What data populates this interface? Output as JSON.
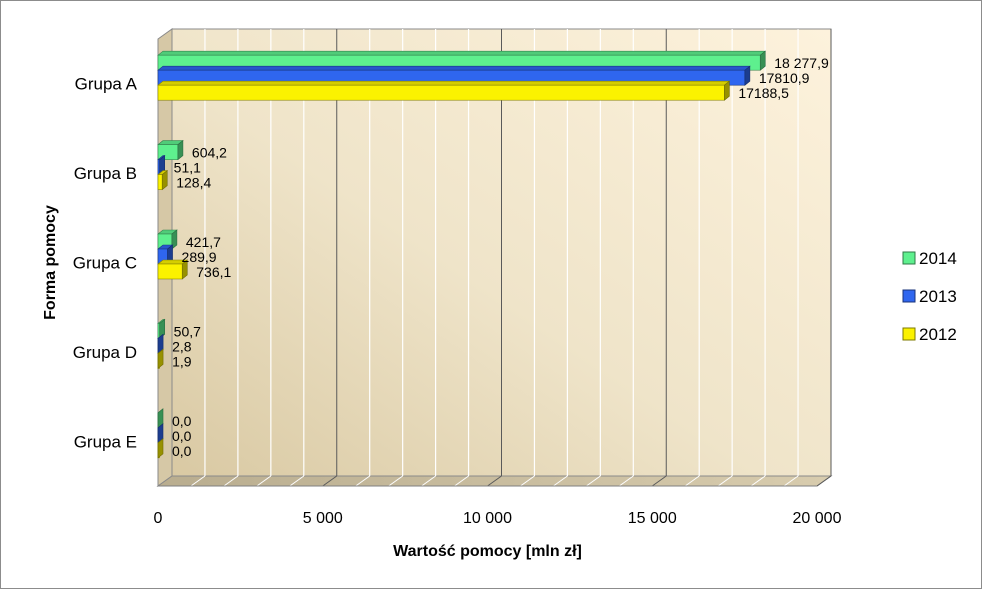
{
  "chart_data": {
    "type": "bar",
    "orientation": "horizontal",
    "categories": [
      "Grupa A",
      "Grupa B",
      "Grupa C",
      "Grupa D",
      "Grupa E"
    ],
    "series": [
      {
        "name": "2014",
        "color": "#5ef08e",
        "values": [
          18277.9,
          604.2,
          421.7,
          50.7,
          0.0
        ],
        "labels": [
          "18 277,9",
          "604,2",
          "421,7",
          "50,7",
          "0,0"
        ]
      },
      {
        "name": "2013",
        "color": "#2f66ef",
        "values": [
          17810.9,
          51.1,
          289.9,
          2.8,
          0.0
        ],
        "labels": [
          "17810,9",
          "51,1",
          "289,9",
          "2,8",
          "0,0"
        ]
      },
      {
        "name": "2012",
        "color": "#fbf200",
        "values": [
          17188.5,
          128.4,
          736.1,
          1.9,
          0.0
        ],
        "labels": [
          "17188,5",
          "128,4",
          "736,1",
          "1,9",
          "0,0"
        ]
      }
    ],
    "xlim": [
      0,
      20000
    ],
    "ticks": [
      0,
      5000,
      10000,
      15000,
      20000
    ],
    "tick_labels": [
      "0",
      "5 000",
      "10 000",
      "15 000",
      "20 000"
    ],
    "xlabel": "Wartość pomocy [mln zł]",
    "ylabel": "Forma pomocy",
    "legend": [
      "2014",
      "2013",
      "2012"
    ],
    "legend_position": "right",
    "grid": true
  }
}
